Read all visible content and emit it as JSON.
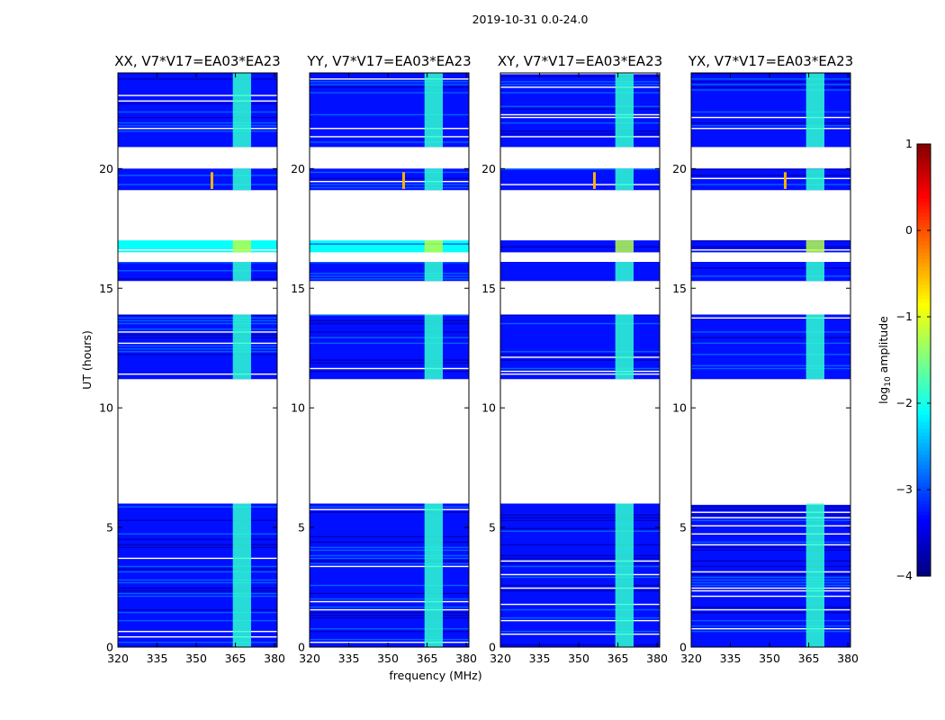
{
  "chart_data": {
    "type": "heatmap",
    "suptitle": "2019-10-31 0.0-24.0",
    "panels": [
      {
        "title": "XX, V7*V17=EA03*EA23",
        "pol": "XX"
      },
      {
        "title": "YY, V7*V17=EA03*EA23",
        "pol": "YY"
      },
      {
        "title": "XY, V7*V17=EA03*EA23",
        "pol": "XY"
      },
      {
        "title": "YX, V7*V17=EA03*EA23",
        "pol": "YX"
      }
    ],
    "xlabel": "frequency (MHz)",
    "ylabel": "UT (hours)",
    "xlim": [
      320,
      381
    ],
    "ylim": [
      0,
      24
    ],
    "xticks": [
      320,
      335,
      350,
      365,
      380
    ],
    "xtick_labels": [
      "320",
      "335",
      "350",
      "365",
      "380"
    ],
    "yticks": [
      0,
      5,
      10,
      15,
      20
    ],
    "ytick_labels": [
      "0",
      "5",
      "10",
      "15",
      "20"
    ],
    "colorbar": {
      "label": "log10 amplitude",
      "label_base": "log",
      "label_sub": "10",
      "label_rest": " amplitude",
      "range": [
        -4,
        1
      ],
      "ticks": [
        1,
        0,
        -1,
        -2,
        -3,
        -4
      ],
      "tick_labels": [
        "1",
        "0",
        "−1",
        "−2",
        "−3",
        "−4"
      ],
      "colormap": "jet"
    },
    "data_time_ranges_hours": [
      [
        0.0,
        6.0
      ],
      [
        11.2,
        13.9
      ],
      [
        15.3,
        16.1
      ],
      [
        16.5,
        17.0
      ],
      [
        19.1,
        20.0
      ],
      [
        20.9,
        24.0
      ]
    ],
    "rfi_band_mhz": [
      364,
      371
    ],
    "rfi_spike": {
      "freq_mhz": 356,
      "time_hours": 19.5
    }
  }
}
